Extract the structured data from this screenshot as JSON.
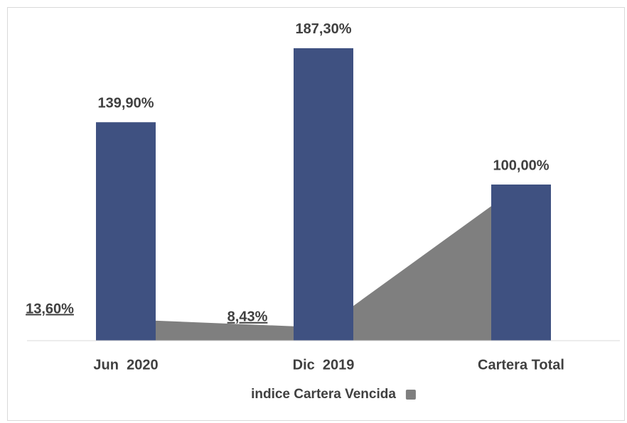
{
  "chart_data": {
    "type": "bar",
    "categories": [
      "Jun  2020",
      "Dic  2019",
      "Cartera Total"
    ],
    "series": [
      {
        "type": "bar",
        "color": "#3f5181",
        "values": [
          139.9,
          187.3,
          100.0
        ],
        "value_labels": [
          "139,90%",
          "187,30%",
          "100,00%"
        ]
      },
      {
        "type": "area",
        "name": "indice Cartera Vencida",
        "color": "#7f7f7f",
        "values": [
          13.6,
          8.43,
          100.0
        ],
        "value_labels": [
          "13,60%",
          "8,43%",
          null
        ]
      }
    ],
    "ylim": [
      0,
      200
    ],
    "legend": "bottom"
  }
}
